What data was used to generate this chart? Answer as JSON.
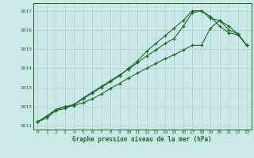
{
  "xlabel": "Graphe pression niveau de la mer (hPa)",
  "bg_color": "#cce8e8",
  "grid_color": "#b0cccc",
  "line_color": "#1a6b2a",
  "xlim": [
    -0.5,
    23.5
  ],
  "ylim": [
    1010.8,
    1017.4
  ],
  "yticks": [
    1011,
    1012,
    1013,
    1014,
    1015,
    1016,
    1017
  ],
  "xticks": [
    0,
    1,
    2,
    3,
    4,
    5,
    6,
    7,
    8,
    9,
    10,
    11,
    12,
    13,
    14,
    15,
    16,
    17,
    18,
    19,
    20,
    21,
    22,
    23
  ],
  "series1": [
    1011.2,
    1011.5,
    1011.8,
    1011.9,
    1012.1,
    1012.4,
    1012.7,
    1013.0,
    1013.3,
    1013.6,
    1014.0,
    1014.4,
    1014.9,
    1015.3,
    1015.7,
    1016.1,
    1016.5,
    1017.0,
    1017.0,
    1016.6,
    1016.5,
    1016.0,
    1015.8,
    1015.2
  ],
  "series2": [
    1011.2,
    1011.5,
    1011.85,
    1012.0,
    1012.1,
    1012.45,
    1012.75,
    1013.05,
    1013.35,
    1013.65,
    1013.95,
    1014.3,
    1014.65,
    1014.95,
    1015.3,
    1015.55,
    1016.2,
    1016.9,
    1017.0,
    1016.7,
    1016.2,
    1015.85,
    1015.75,
    1015.2
  ],
  "series3": [
    1011.2,
    1011.4,
    1011.8,
    1012.0,
    1012.05,
    1012.2,
    1012.4,
    1012.65,
    1012.95,
    1013.2,
    1013.5,
    1013.75,
    1014.0,
    1014.25,
    1014.5,
    1014.7,
    1014.95,
    1015.2,
    1015.2,
    1016.1,
    1016.5,
    1016.2,
    1015.8,
    1015.2
  ]
}
